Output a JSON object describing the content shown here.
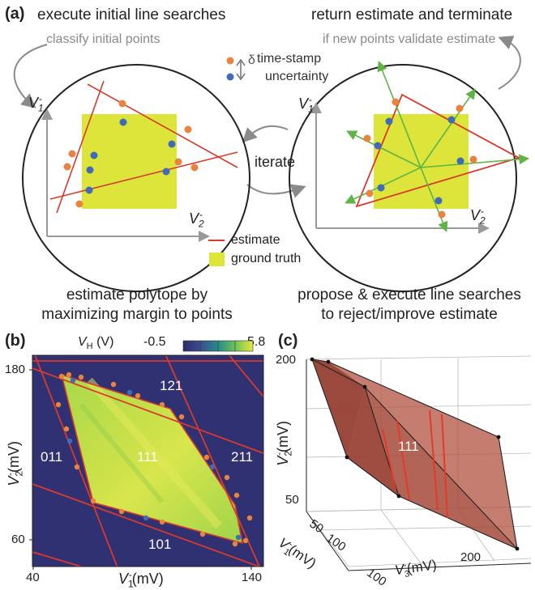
{
  "panel_a": {
    "label": "(a)",
    "top_left_title": "execute initial line searches",
    "top_left_sub": "classify initial points",
    "top_right_title": "return estimate and terminate",
    "top_right_sub": "if new points validate estimate",
    "iterate": "iterate",
    "legend_timestamp_1": "time-stamp",
    "legend_timestamp_2": "uncertainty",
    "legend_delta": "δ",
    "legend_estimate": "estimate",
    "legend_ground_truth": "ground truth",
    "bottom_left_1": "estimate polytope by",
    "bottom_left_2": "maximizing margin to points",
    "bottom_right_1": "propose & execute line searches",
    "bottom_right_2": "to reject/improve estimate",
    "axis_v1": "V",
    "axis_v2": "V",
    "sup": "-",
    "sub1": "1",
    "sub2": "2"
  },
  "panel_b": {
    "label": "(b)",
    "colorbar_label": "V",
    "colorbar_sub": "H",
    "colorbar_unit": "(V)",
    "colorbar_min": "-0.5",
    "colorbar_max": "5.8",
    "y_label": "V",
    "y_sub": "2",
    "y_unit": "(mV)",
    "x_label": "V",
    "x_sub": "1",
    "x_unit": "(mV)",
    "sup": "-",
    "y_ticks": [
      "180",
      "60"
    ],
    "x_ticks": [
      "40",
      "140"
    ],
    "regions": [
      "121",
      "011",
      "111",
      "211",
      "101"
    ]
  },
  "panel_c": {
    "label": "(c)",
    "y_label": "V",
    "y_sub": "2",
    "y_unit": "(mV)",
    "x_label": "V",
    "x_sub": "1",
    "x_unit": "(mV)",
    "z_label": "V",
    "z_sub": "3",
    "z_unit": "(mV)",
    "sup": "-",
    "y_ticks": [
      "200",
      "50"
    ],
    "x_ticks": [
      "50",
      "100",
      "100"
    ],
    "z_ticks": [
      "200"
    ],
    "region": "111"
  },
  "colors": {
    "estimate_line": "#d93a2b",
    "ground_truth": "#dde43a",
    "orange_point": "#e8843e",
    "blue_point": "#3f6cb8",
    "proposal_arrow": "#5fb544",
    "heatmap_low": "#2e2a6d",
    "heatmap_high": "#d9e84a",
    "polytope": "#a5493b"
  }
}
